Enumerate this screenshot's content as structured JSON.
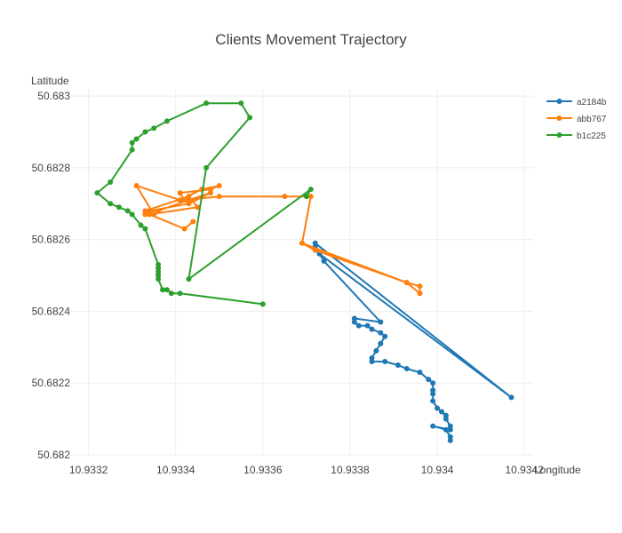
{
  "chart_data": {
    "type": "scatter",
    "title": "Clients Movement Trajectory",
    "xlabel": "Longitude",
    "ylabel": "Latitude",
    "xlim": [
      10.93316,
      10.93422
    ],
    "ylim": [
      50.682,
      50.68302
    ],
    "x_ticks": [
      10.9332,
      10.9334,
      10.9336,
      10.9338,
      10.934,
      10.9342
    ],
    "x_tick_labels": [
      "10.9332",
      "10.9334",
      "10.9336",
      "10.9338",
      "10.934",
      "10.9342"
    ],
    "y_ticks": [
      50.682,
      50.6822,
      50.6824,
      50.6826,
      50.6828,
      50.683
    ],
    "y_tick_labels": [
      "50.682",
      "50.6822",
      "50.6824",
      "50.6826",
      "50.6828",
      "50.683"
    ],
    "grid": true,
    "legend_position": "top-right",
    "mode": "lines+markers",
    "series": [
      {
        "name": "a2184b",
        "color": "#1f77b4",
        "points": [
          [
            10.93372,
            50.68259
          ],
          [
            10.93417,
            50.68216
          ],
          [
            10.93373,
            50.68256
          ],
          [
            10.93372,
            50.68258
          ],
          [
            10.93374,
            50.68254
          ],
          [
            10.93387,
            50.68237
          ],
          [
            10.93381,
            50.68238
          ],
          [
            10.93381,
            50.68237
          ],
          [
            10.93382,
            50.68236
          ],
          [
            10.93384,
            50.68236
          ],
          [
            10.93385,
            50.68235
          ],
          [
            10.93387,
            50.68234
          ],
          [
            10.93388,
            50.68233
          ],
          [
            10.93387,
            50.68231
          ],
          [
            10.93386,
            50.68229
          ],
          [
            10.93385,
            50.68227
          ],
          [
            10.93385,
            50.68226
          ],
          [
            10.93388,
            50.68226
          ],
          [
            10.93391,
            50.68225
          ],
          [
            10.93393,
            50.68224
          ],
          [
            10.93396,
            50.68223
          ],
          [
            10.93398,
            50.68221
          ],
          [
            10.93399,
            50.6822
          ],
          [
            10.93399,
            50.68218
          ],
          [
            10.93399,
            50.68217
          ],
          [
            10.93399,
            50.68215
          ],
          [
            10.934,
            50.68213
          ],
          [
            10.93401,
            50.68212
          ],
          [
            10.93402,
            50.68211
          ],
          [
            10.93402,
            50.6821
          ],
          [
            10.93403,
            50.68208
          ],
          [
            10.93403,
            50.68207
          ],
          [
            10.93399,
            50.68208
          ],
          [
            10.93402,
            50.68207
          ],
          [
            10.93403,
            50.68205
          ],
          [
            10.93403,
            50.68204
          ]
        ]
      },
      {
        "name": "abb767",
        "color": "#ff7f0e",
        "points": [
          [
            10.93369,
            50.68259
          ],
          [
            10.93393,
            50.68248
          ],
          [
            10.93396,
            50.68247
          ],
          [
            10.93396,
            50.68245
          ],
          [
            10.93393,
            50.68248
          ],
          [
            10.93372,
            50.68257
          ],
          [
            10.93369,
            50.68259
          ],
          [
            10.93371,
            50.68272
          ],
          [
            10.93365,
            50.68272
          ],
          [
            10.9335,
            50.68272
          ],
          [
            10.93342,
            50.68271
          ],
          [
            10.93341,
            50.68273
          ],
          [
            10.93348,
            50.68274
          ],
          [
            10.9335,
            50.68275
          ],
          [
            10.93346,
            50.68274
          ],
          [
            10.93341,
            50.68271
          ],
          [
            10.93331,
            50.68275
          ],
          [
            10.93335,
            50.68267
          ],
          [
            10.93333,
            50.68267
          ],
          [
            10.93334,
            50.68268
          ],
          [
            10.93343,
            50.6827
          ],
          [
            10.93348,
            50.68273
          ],
          [
            10.93343,
            50.68271
          ],
          [
            10.93336,
            50.68268
          ],
          [
            10.93334,
            50.68268
          ],
          [
            10.93333,
            50.68268
          ],
          [
            10.93343,
            50.68272
          ],
          [
            10.93345,
            50.68269
          ],
          [
            10.93334,
            50.68267
          ],
          [
            10.93342,
            50.68263
          ],
          [
            10.93344,
            50.68265
          ]
        ]
      },
      {
        "name": "b1c225",
        "color": "#2ca02c",
        "points": [
          [
            10.9336,
            50.68242
          ],
          [
            10.93341,
            50.68245
          ],
          [
            10.93339,
            50.68245
          ],
          [
            10.93338,
            50.68246
          ],
          [
            10.93337,
            50.68246
          ],
          [
            10.93336,
            50.68249
          ],
          [
            10.93336,
            50.6825
          ],
          [
            10.93336,
            50.68251
          ],
          [
            10.93336,
            50.68252
          ],
          [
            10.93336,
            50.68253
          ],
          [
            10.93333,
            50.68263
          ],
          [
            10.93332,
            50.68264
          ],
          [
            10.9333,
            50.68267
          ],
          [
            10.93329,
            50.68268
          ],
          [
            10.93327,
            50.68269
          ],
          [
            10.93325,
            50.6827
          ],
          [
            10.93322,
            50.68273
          ],
          [
            10.93325,
            50.68276
          ],
          [
            10.9333,
            50.68285
          ],
          [
            10.9333,
            50.68287
          ],
          [
            10.93331,
            50.68288
          ],
          [
            10.93333,
            50.6829
          ],
          [
            10.93335,
            50.68291
          ],
          [
            10.93338,
            50.68293
          ],
          [
            10.93347,
            50.68298
          ],
          [
            10.93355,
            50.68298
          ],
          [
            10.93357,
            50.68294
          ],
          [
            10.93347,
            50.6828
          ],
          [
            10.93343,
            50.68249
          ],
          [
            10.93371,
            50.68274
          ],
          [
            10.9337,
            50.68272
          ]
        ]
      }
    ]
  }
}
